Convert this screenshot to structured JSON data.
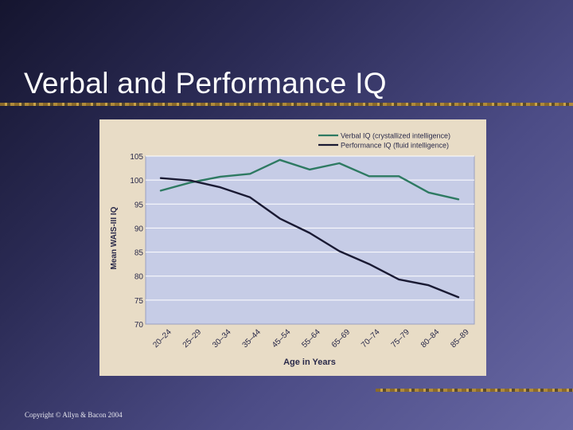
{
  "slide": {
    "title": "Verbal and Performance IQ",
    "copyright": "Copyright © Allyn & Bacon 2004"
  },
  "colors": {
    "verbal": "#2e7a62",
    "performance": "#1a1a33",
    "plot_background": "#c6cce6",
    "panel_background": "#e8dcc6"
  },
  "chart_data": {
    "type": "line",
    "title": "",
    "xlabel": "Age in Years",
    "ylabel": "Mean WAIS-III IQ",
    "categories": [
      "20–24",
      "25–29",
      "30–34",
      "35–44",
      "45–54",
      "55–64",
      "65–69",
      "70–74",
      "75–79",
      "80–84",
      "85–89"
    ],
    "series": [
      {
        "name": "Verbal IQ (crystallized intelligence)",
        "values": [
          97.8,
          99.5,
          100.7,
          101.3,
          104.2,
          102.2,
          103.5,
          100.8,
          100.8,
          97.4,
          96.0
        ]
      },
      {
        "name": "Performance IQ (fluid intelligence)",
        "values": [
          100.4,
          99.9,
          98.5,
          96.4,
          92.0,
          89.0,
          85.2,
          82.5,
          79.3,
          78.1,
          75.6
        ]
      }
    ],
    "yticks": [
      70,
      75,
      80,
      85,
      90,
      95,
      100,
      105
    ],
    "ylim": [
      70,
      105
    ],
    "grid": true,
    "legend_position": "top-right"
  }
}
